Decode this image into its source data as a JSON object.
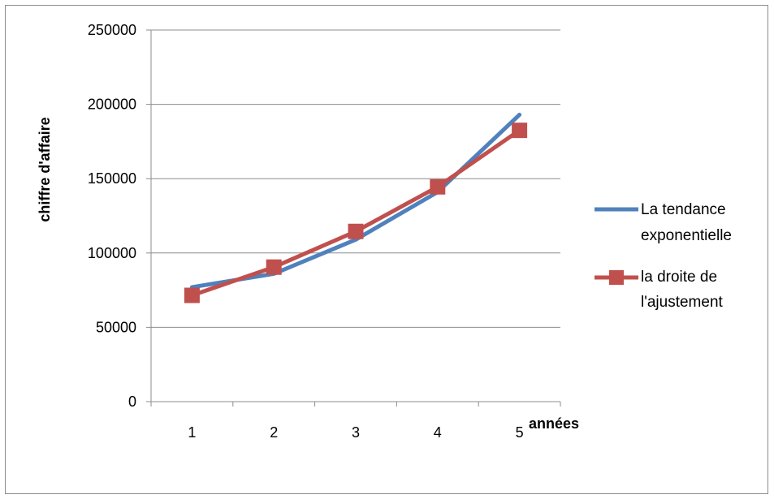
{
  "chart_data": {
    "type": "line",
    "title": "",
    "xlabel": "années",
    "ylabel": "chiffre d'affaire",
    "categories": [
      "1",
      "2",
      "3",
      "4",
      "5"
    ],
    "ylim": [
      0,
      250000
    ],
    "yticks": [
      "0",
      "50000",
      "100000",
      "150000",
      "200000",
      "250000"
    ],
    "grid": true,
    "legend_position": "right",
    "series": [
      {
        "name_lines": [
          "La tendance",
          "exponentielle"
        ],
        "values": [
          77000,
          86000,
          109000,
          141000,
          193000
        ],
        "color": "#4f81bd",
        "marker": "none"
      },
      {
        "name_lines": [
          "la droite de",
          "l'ajustement"
        ],
        "values": [
          71500,
          90500,
          114500,
          144500,
          182500
        ],
        "color": "#c0504d",
        "marker": "square"
      }
    ]
  }
}
